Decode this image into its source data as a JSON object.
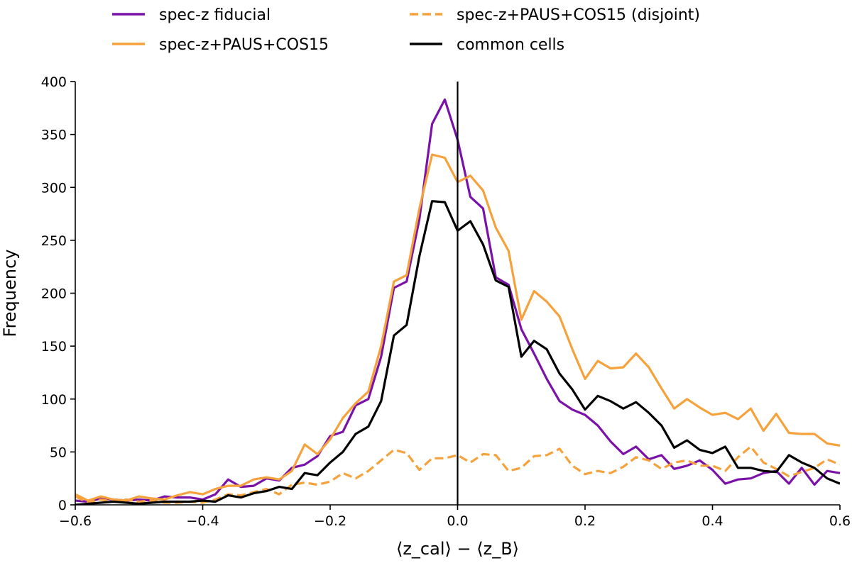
{
  "chart_data": {
    "type": "line",
    "xlabel": "⟨z_cal⟩ − ⟨z_B⟩",
    "ylabel": "Frequency",
    "xlim": [
      -0.6,
      0.6
    ],
    "ylim": [
      0,
      400
    ],
    "xticks": [
      -0.6,
      -0.4,
      -0.2,
      0.0,
      0.2,
      0.4,
      0.6
    ],
    "xtick_labels": [
      "−0.6",
      "−0.4",
      "−0.2",
      "0.0",
      "0.2",
      "0.4",
      "0.6"
    ],
    "yticks": [
      0,
      50,
      100,
      150,
      200,
      250,
      300,
      350,
      400
    ],
    "ytick_labels": [
      "0",
      "50",
      "100",
      "150",
      "200",
      "250",
      "300",
      "350",
      "400"
    ],
    "vertical_line_x": 0.0,
    "grid": false,
    "legend": {
      "placement": "top",
      "columns": 2
    },
    "x": [
      -0.6,
      -0.58,
      -0.56,
      -0.54,
      -0.52,
      -0.5,
      -0.48,
      -0.46,
      -0.44,
      -0.42,
      -0.4,
      -0.38,
      -0.36,
      -0.34,
      -0.32,
      -0.3,
      -0.28,
      -0.26,
      -0.24,
      -0.22,
      -0.2,
      -0.18,
      -0.16,
      -0.14,
      -0.12,
      -0.1,
      -0.08,
      -0.06,
      -0.04,
      -0.02,
      0.0,
      0.02,
      0.04,
      0.06,
      0.08,
      0.1,
      0.12,
      0.14,
      0.16,
      0.18,
      0.2,
      0.22,
      0.24,
      0.26,
      0.28,
      0.3,
      0.32,
      0.34,
      0.36,
      0.38,
      0.4,
      0.42,
      0.44,
      0.46,
      0.48,
      0.5,
      0.52,
      0.54,
      0.56,
      0.58,
      0.6
    ],
    "series": [
      {
        "name": "spec-z fiducial",
        "color": "#7b12a8",
        "dash": "solid",
        "values": [
          4,
          3,
          6,
          5,
          4,
          5,
          4,
          8,
          7,
          7,
          5,
          10,
          24,
          17,
          18,
          25,
          23,
          35,
          38,
          46,
          65,
          69,
          94,
          100,
          140,
          205,
          211,
          270,
          360,
          383,
          345,
          291,
          280,
          215,
          208,
          166,
          143,
          119,
          98,
          90,
          85,
          75,
          60,
          48,
          55,
          43,
          47,
          34,
          37,
          42,
          33,
          20,
          24,
          25,
          30,
          32,
          20,
          35,
          19,
          32,
          30
        ]
      },
      {
        "name": "spec-z+PAUS+COS15",
        "color": "#f5a23c",
        "dash": "solid",
        "values": [
          10,
          4,
          8,
          5,
          4,
          8,
          6,
          5,
          9,
          12,
          10,
          15,
          18,
          18,
          24,
          26,
          24,
          32,
          57,
          48,
          62,
          82,
          96,
          107,
          150,
          211,
          217,
          280,
          331,
          328,
          305,
          311,
          297,
          262,
          240,
          175,
          202,
          192,
          178,
          147,
          119,
          136,
          129,
          130,
          143,
          130,
          110,
          91,
          100,
          92,
          85,
          87,
          81,
          91,
          70,
          86,
          68,
          67,
          67,
          58,
          56
        ]
      },
      {
        "name": "spec-z+PAUS+COS15 (disjoint)",
        "color": "#f5a23c",
        "dash": "dashed",
        "values": [
          8,
          2,
          5,
          3,
          5,
          3,
          4,
          2,
          2,
          3,
          2,
          5,
          10,
          9,
          12,
          15,
          10,
          19,
          21,
          19,
          22,
          30,
          25,
          32,
          42,
          52,
          49,
          33,
          44,
          44,
          47,
          40,
          48,
          47,
          32,
          35,
          46,
          47,
          53,
          37,
          29,
          32,
          30,
          36,
          45,
          42,
          34,
          40,
          42,
          37,
          37,
          32,
          45,
          55,
          40,
          34,
          27,
          31,
          35,
          43,
          38
        ]
      },
      {
        "name": "common cells",
        "color": "#000000",
        "dash": "solid",
        "values": [
          0,
          1,
          2,
          3,
          2,
          1,
          2,
          3,
          3,
          3,
          4,
          3,
          9,
          7,
          11,
          13,
          17,
          15,
          30,
          28,
          40,
          50,
          67,
          74,
          98,
          160,
          170,
          235,
          287,
          286,
          259,
          268,
          246,
          212,
          206,
          140,
          155,
          147,
          124,
          109,
          90,
          103,
          98,
          91,
          97,
          87,
          75,
          54,
          61,
          52,
          49,
          55,
          35,
          35,
          32,
          31,
          47,
          40,
          35,
          25,
          20
        ]
      }
    ]
  }
}
